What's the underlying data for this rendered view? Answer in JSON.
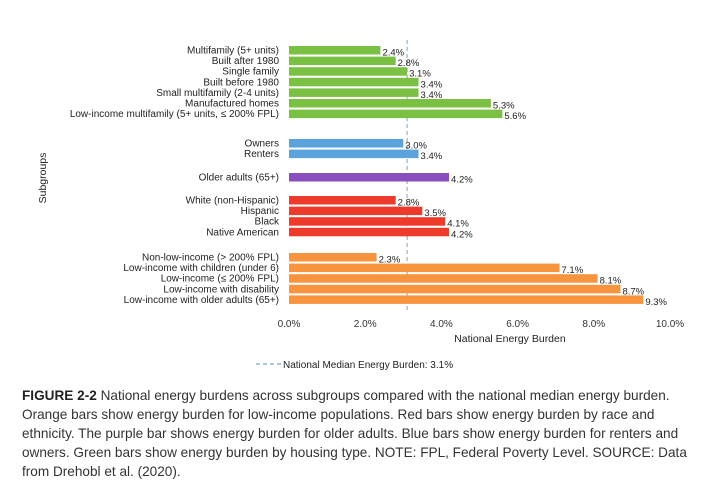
{
  "chart_data": {
    "type": "bar",
    "orientation": "horizontal",
    "ylabel": "Subgroups",
    "xlabel": "National Energy Burden",
    "xlim": [
      0,
      10
    ],
    "x_ticks": [
      "0.0%",
      "2.0%",
      "4.0%",
      "6.0%",
      "8.0%",
      "10.0%"
    ],
    "reference_line": {
      "value": 3.1,
      "label": "National Median Energy Burden: 3.1%",
      "style": "dashed",
      "color": "#8fb3cf"
    },
    "legend_position": "bottom-center",
    "grid": false,
    "groups": [
      {
        "color": "#7ac143",
        "bars": [
          {
            "category": "Multifamily (5+ units)",
            "value": 2.4,
            "label": "2.4%"
          },
          {
            "category": "Built after 1980",
            "value": 2.8,
            "label": "2.8%"
          },
          {
            "category": "Single family",
            "value": 3.1,
            "label": "3.1%"
          },
          {
            "category": "Built before 1980",
            "value": 3.4,
            "label": "3.4%"
          },
          {
            "category": "Small multifamily (2-4 units)",
            "value": 3.4,
            "label": "3.4%"
          },
          {
            "category": "Manufactured homes",
            "value": 5.3,
            "label": "5.3%"
          },
          {
            "category": "Low-income multifamily (5+ units, ≤ 200% FPL)",
            "value": 5.6,
            "label": "5.6%"
          }
        ]
      },
      {
        "color": "#5aa3dc",
        "bars": [
          {
            "category": "Owners",
            "value": 3.0,
            "label": "3.0%"
          },
          {
            "category": "Renters",
            "value": 3.4,
            "label": "3.4%"
          }
        ]
      },
      {
        "color": "#8a4fbf",
        "bars": [
          {
            "category": "Older adults (65+)",
            "value": 4.2,
            "label": "4.2%"
          }
        ]
      },
      {
        "color": "#ee3a2b",
        "bars": [
          {
            "category": "White (non-Hispanic)",
            "value": 2.8,
            "label": "2.8%"
          },
          {
            "category": "Hispanic",
            "value": 3.5,
            "label": "3.5%"
          },
          {
            "category": "Black",
            "value": 4.1,
            "label": "4.1%"
          },
          {
            "category": "Native American",
            "value": 4.2,
            "label": "4.2%"
          }
        ]
      },
      {
        "color": "#f7943d",
        "bars": [
          {
            "category": "Non-low-income (> 200% FPL)",
            "value": 2.3,
            "label": "2.3%"
          },
          {
            "category": "Low-income with children (under 6)",
            "value": 7.1,
            "label": "7.1%"
          },
          {
            "category": "Low-income (≤ 200% FPL)",
            "value": 8.1,
            "label": "8.1%"
          },
          {
            "category": "Low-income with disability",
            "value": 8.7,
            "label": "8.7%"
          },
          {
            "category": "Low-income with older adults (65+)",
            "value": 9.3,
            "label": "9.3%"
          }
        ]
      }
    ]
  },
  "caption": {
    "figure_label": "FIGURE 2-2",
    "text": "National energy burdens across subgroups compared with the national median energy burden. Orange bars show energy burden for low-income populations. Red bars show energy burden by race and ethnicity. The purple bar shows energy burden for older adults. Blue bars show energy burden for renters and owners. Green bars show energy burden by housing type. NOTE: FPL, Federal Poverty Level. SOURCE: Data from Drehobl et al. (2020)."
  }
}
